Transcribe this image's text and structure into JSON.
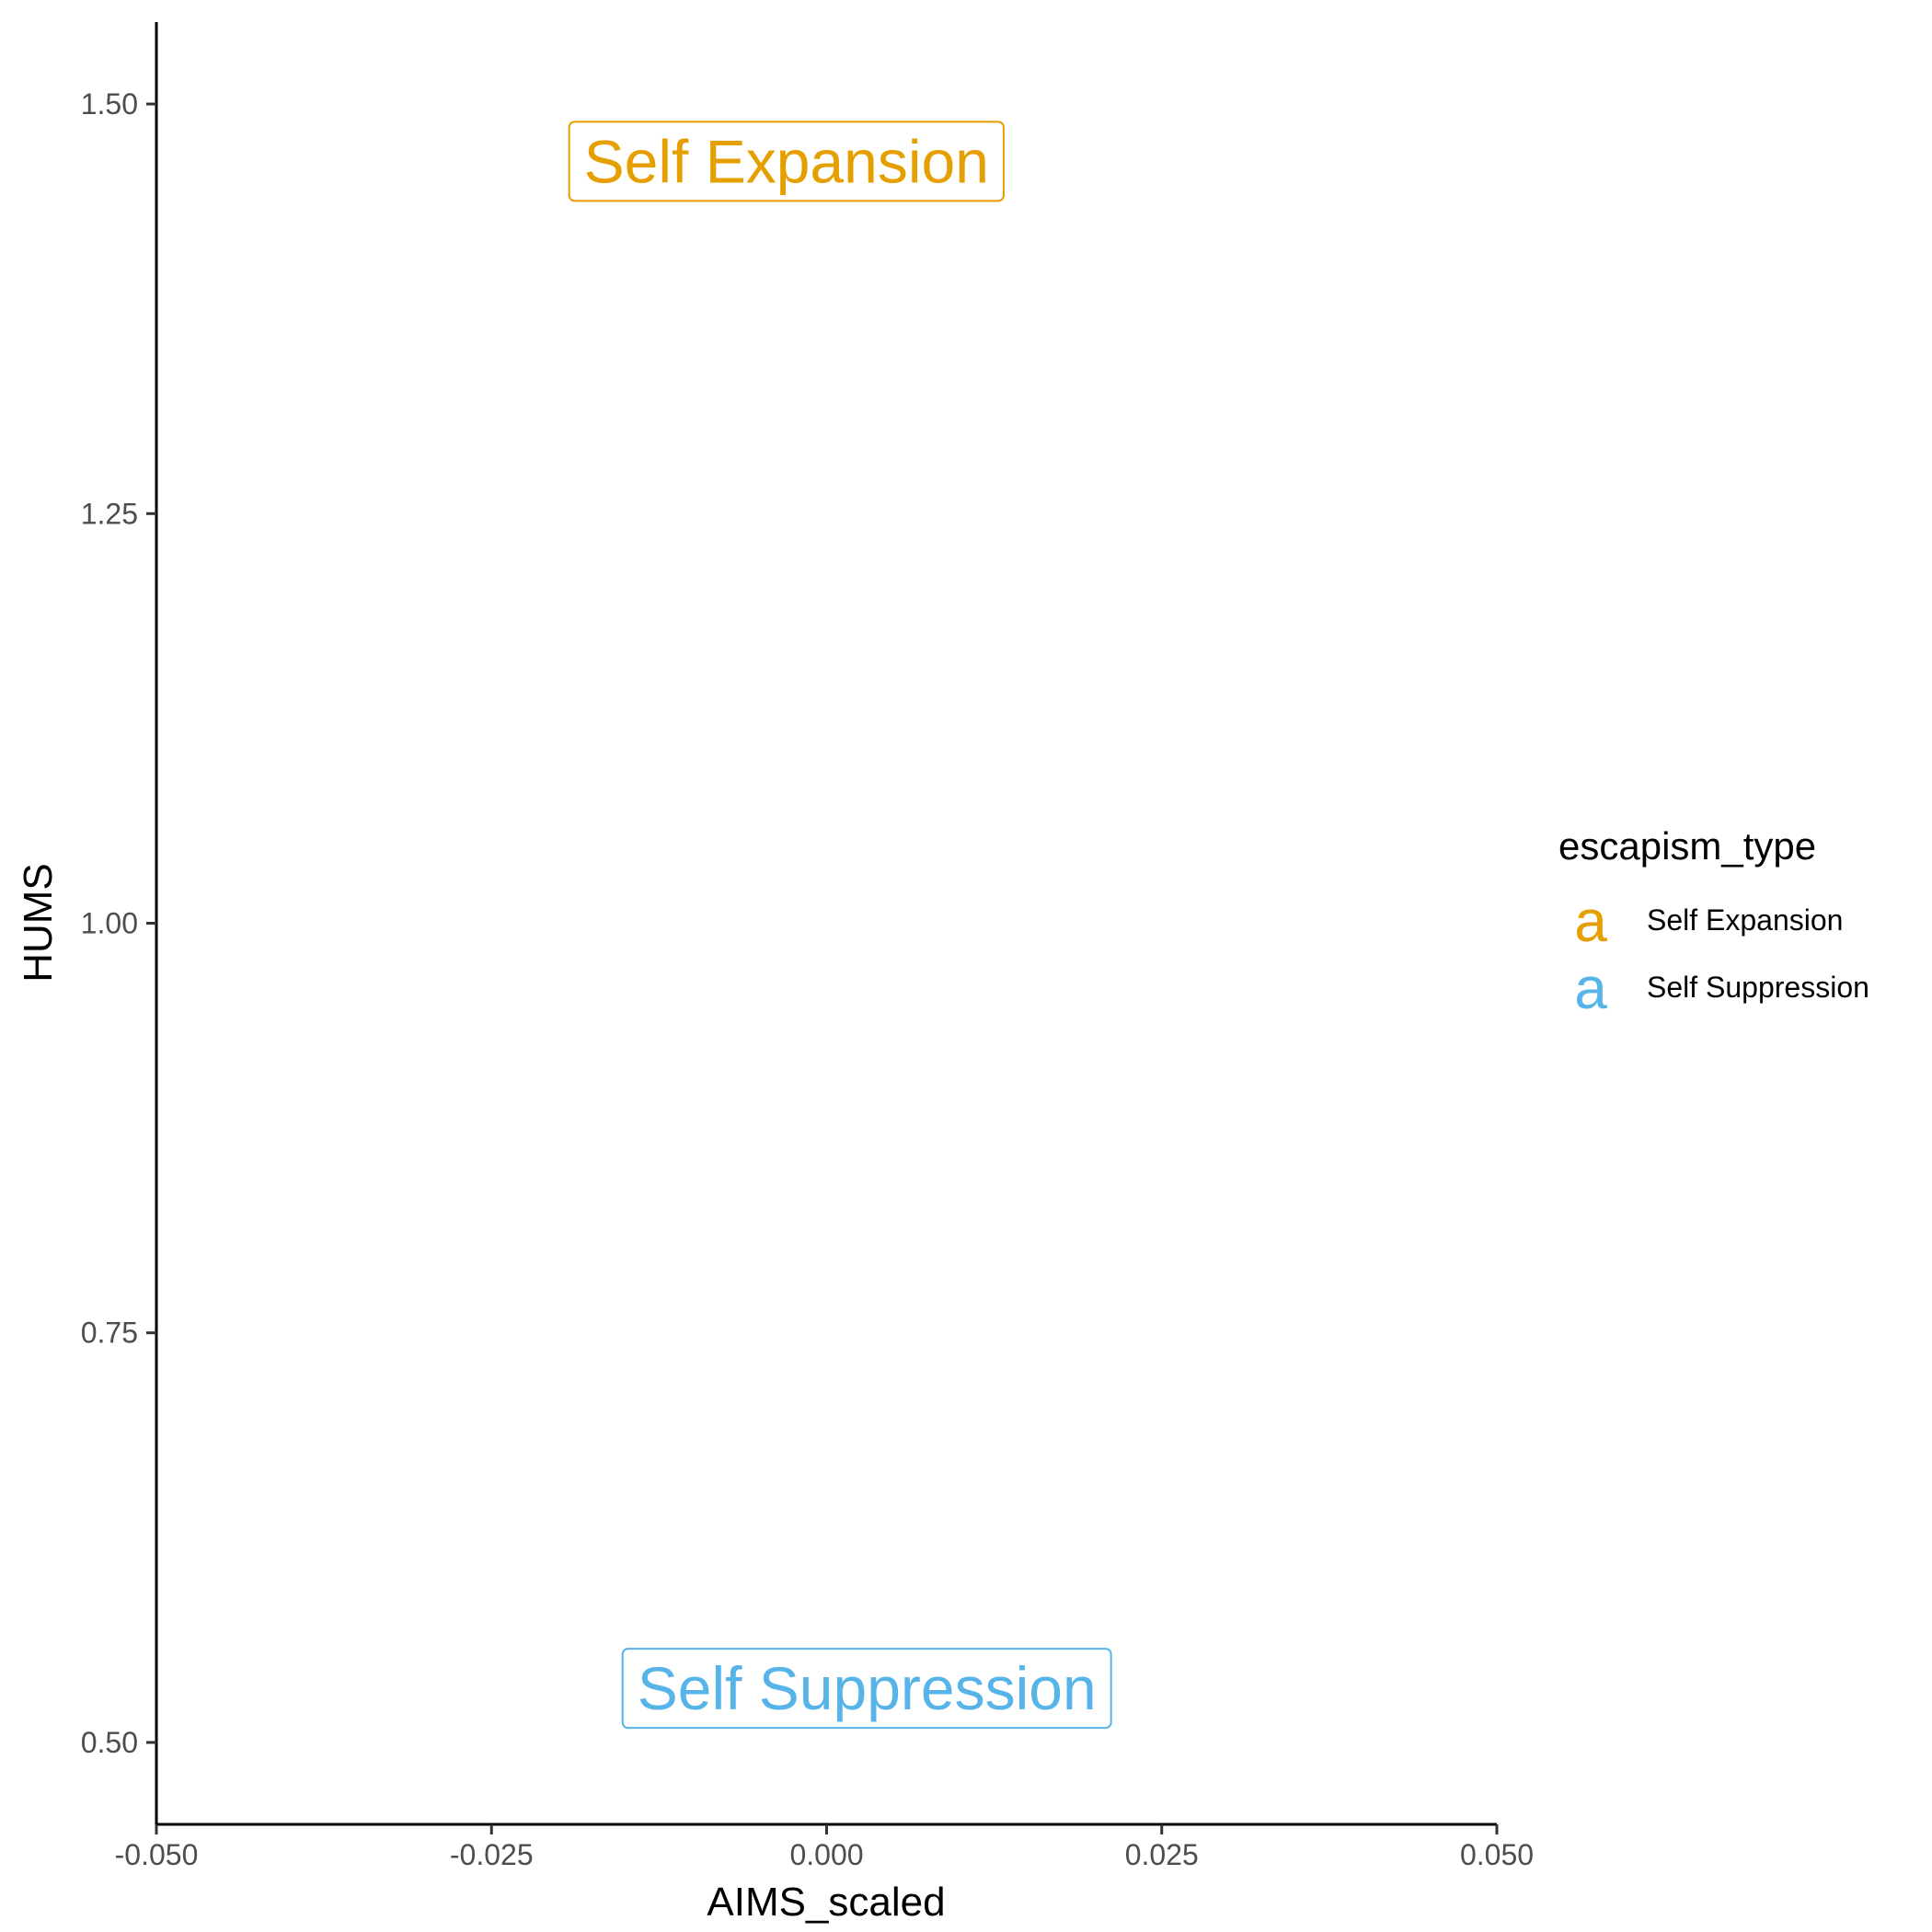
{
  "chart_data": {
    "type": "scatter",
    "title": "",
    "xlabel": "AIMS_scaled",
    "ylabel": "HUMS",
    "xlim": [
      -0.05,
      0.05
    ],
    "ylim": [
      0.45,
      1.55
    ],
    "x_ticks": [
      -0.05,
      -0.025,
      0.0,
      0.025,
      0.05
    ],
    "x_tick_labels": [
      "-0.050",
      "-0.025",
      "0.000",
      "0.025",
      "0.050"
    ],
    "y_ticks": [
      0.5,
      0.75,
      1.0,
      1.25,
      1.5
    ],
    "y_tick_labels": [
      "0.50",
      "0.75",
      "1.00",
      "1.25",
      "1.50"
    ],
    "grid": false,
    "legend": {
      "title": "escapism_type",
      "placement": "right",
      "key_glyph": "a",
      "entries": [
        {
          "label": "Self Expansion",
          "color": "#E69F00"
        },
        {
          "label": "Self Suppression",
          "color": "#56B4E9"
        }
      ]
    },
    "series": [
      {
        "name": "Self Expansion",
        "color": "#E69F00",
        "points": [
          {
            "x": -0.003,
            "y": 1.465,
            "label": "Self Expansion"
          }
        ]
      },
      {
        "name": "Self Suppression",
        "color": "#56B4E9",
        "points": [
          {
            "x": 0.003,
            "y": 0.533,
            "label": "Self Suppression"
          }
        ]
      }
    ]
  }
}
